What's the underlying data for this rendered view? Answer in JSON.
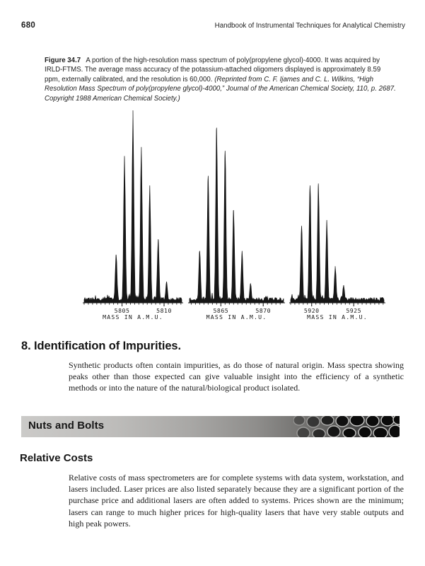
{
  "page": {
    "number": "680",
    "header_title": "Handbook of Instrumental Techniques for Analytical Chemistry"
  },
  "figure": {
    "label": "Figure 34.7",
    "caption": "A portion of the high-resolution mass spectrum of poly(propylene glycol)-4000. It was acquired by IRLD-FTMS. The average mass accuracy of the potassium-attached oligomers displayed is approximately 8.59 ppm, externally calibrated, and the resolution is 60,000.",
    "source": "(Reprinted from C. F. Ijames and C. L. Wilkins, “High Resolution Mass Spectrum of poly(propylene glycol)-4000,” Journal of the American Chemical Society, 110, p. 2687. Copyright 1988 American Chemical Society.)"
  },
  "chart_data": {
    "type": "line",
    "title": "",
    "ylabel": "",
    "grid": false,
    "legend": "none",
    "description": "Mass spectrum with three potassium-attached PPG oligomer isotope clusters; intensities relative to tallest peak",
    "minor_tick_step": 0.5,
    "clusters": [
      {
        "xlabel": "MASS IN A.M.U.",
        "axis_range": [
          5800.5,
          5812.1
        ],
        "labeled_ticks": [
          5805,
          5810
        ],
        "peaks": [
          {
            "mass": 5804.3,
            "rel_intensity": 0.25
          },
          {
            "mass": 5805.3,
            "rel_intensity": 0.75
          },
          {
            "mass": 5806.3,
            "rel_intensity": 1.0
          },
          {
            "mass": 5807.3,
            "rel_intensity": 0.81
          },
          {
            "mass": 5808.3,
            "rel_intensity": 0.61
          },
          {
            "mass": 5809.3,
            "rel_intensity": 0.33
          },
          {
            "mass": 5810.3,
            "rel_intensity": 0.11
          }
        ]
      },
      {
        "xlabel": "MASS IN A.M.U.",
        "axis_range": [
          5861.3,
          5872.4
        ],
        "labeled_ticks": [
          5865,
          5870
        ],
        "peaks": [
          {
            "mass": 5862.5,
            "rel_intensity": 0.27
          },
          {
            "mass": 5863.5,
            "rel_intensity": 0.66
          },
          {
            "mass": 5864.5,
            "rel_intensity": 0.91
          },
          {
            "mass": 5865.5,
            "rel_intensity": 0.79
          },
          {
            "mass": 5866.5,
            "rel_intensity": 0.48
          },
          {
            "mass": 5867.5,
            "rel_intensity": 0.27
          },
          {
            "mass": 5868.5,
            "rel_intensity": 0.1
          }
        ]
      },
      {
        "xlabel": "MASS IN A.M.U.",
        "axis_range": [
          5917.5,
          5928.6
        ],
        "labeled_ticks": [
          5920,
          5925
        ],
        "peaks": [
          {
            "mass": 5918.8,
            "rel_intensity": 0.4
          },
          {
            "mass": 5919.8,
            "rel_intensity": 0.61
          },
          {
            "mass": 5920.8,
            "rel_intensity": 0.62
          },
          {
            "mass": 5921.8,
            "rel_intensity": 0.43
          },
          {
            "mass": 5922.8,
            "rel_intensity": 0.19
          },
          {
            "mass": 5923.8,
            "rel_intensity": 0.09
          }
        ]
      }
    ]
  },
  "section": {
    "heading": "8. Identification of Impurities.",
    "body": "Synthetic products often contain impurities, as do those of natural origin. Mass spectra showing peaks other than those expected can give valuable insight into the efficiency of a synthetic methods or into the nature of the natural/biological product isolated."
  },
  "nuts_and_bolts": {
    "banner_label": "Nuts and Bolts",
    "gradient_start": "#cbcac8",
    "gradient_end": "#242424"
  },
  "relative_costs": {
    "heading": "Relative Costs",
    "body": "Relative costs of mass spectrometers are for complete systems with data system, workstation, and lasers included. Laser prices are also listed separately because they are a significant portion of the purchase price and additional lasers are often added to systems. Prices shown are the minimum; lasers can range to much higher prices for high-quality lasers that have very stable outputs and high peak powers."
  }
}
